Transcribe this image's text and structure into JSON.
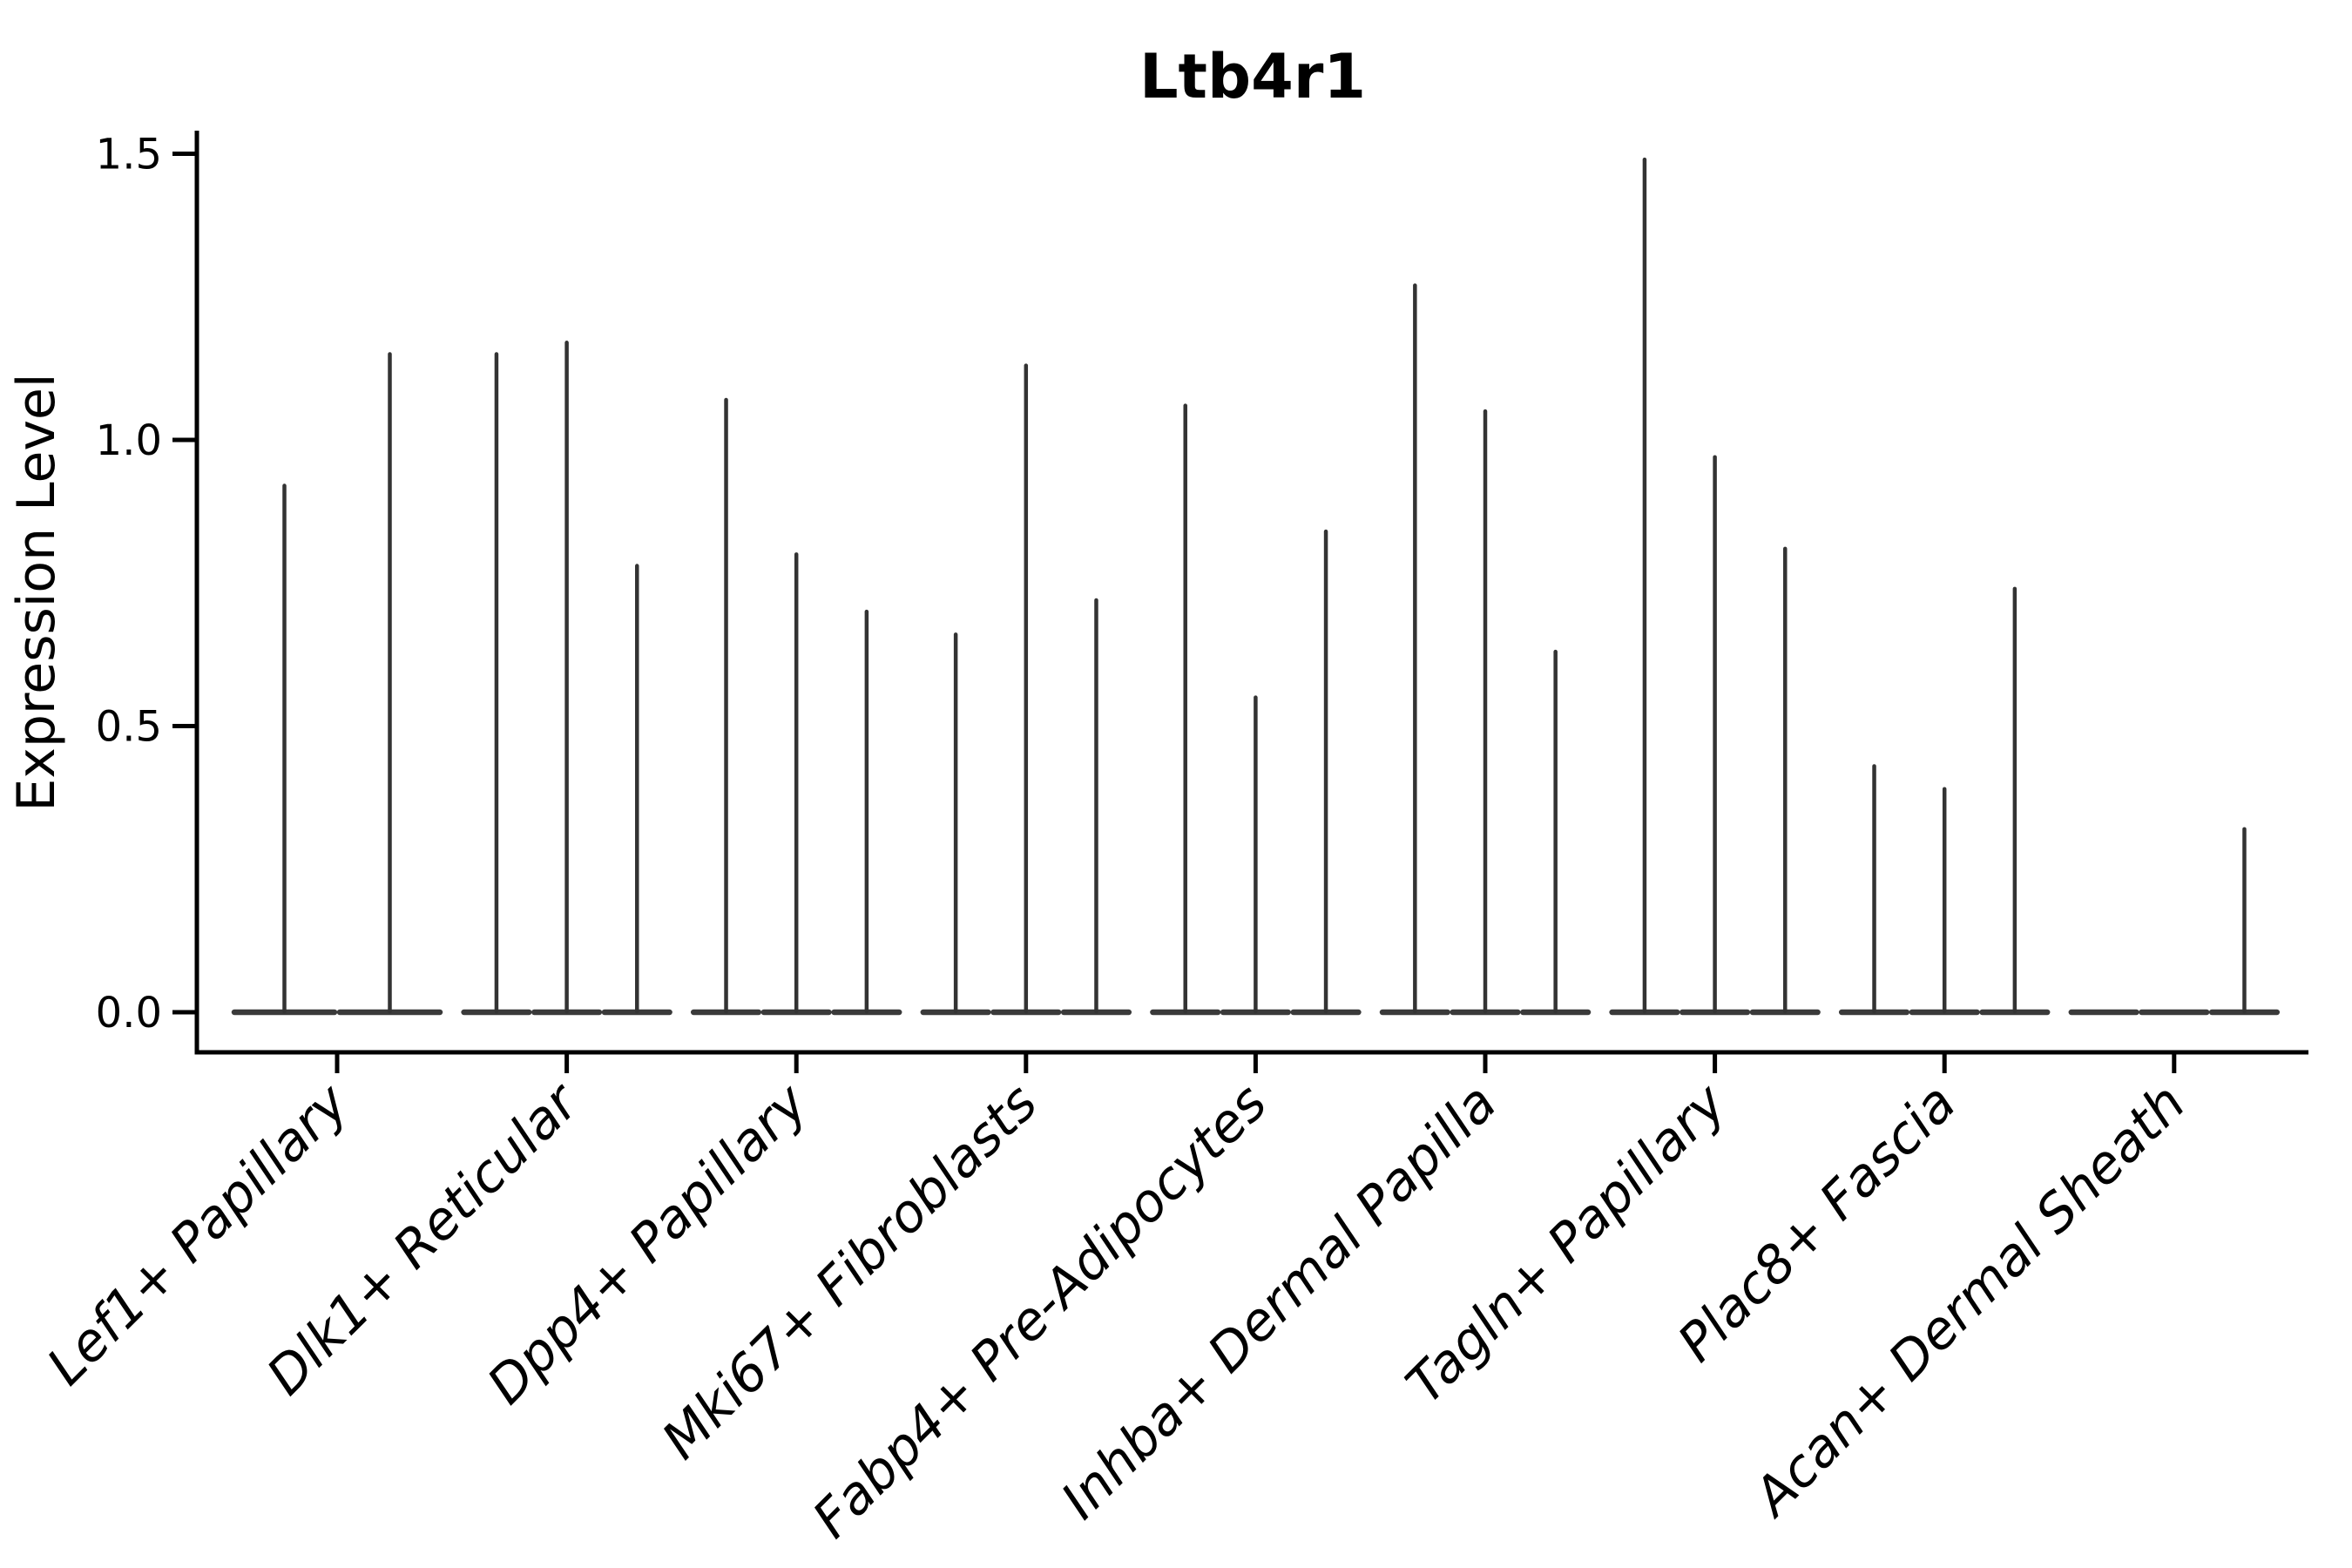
{
  "figure": {
    "title": "Ltb4r1",
    "ylabel": "Expression Level"
  },
  "chart_data": {
    "type": "violin",
    "title": "Ltb4r1",
    "xlabel": "",
    "ylabel": "Expression Level",
    "ylim": [
      -0.07,
      1.54
    ],
    "yticks": [
      0.0,
      0.5,
      1.0,
      1.5
    ],
    "ytick_labels": [
      "0.0",
      "0.5",
      "1.0",
      "1.5"
    ],
    "grid": false,
    "legend": "none",
    "violin_style": "zero-inflated needle violins: flat dense body at 0 with a thin spike rising to the maximum expression value",
    "categories": [
      "Lef1+ Papillary",
      "Dlk1+ Reticular",
      "Dpp4+ Papillary",
      "Mki67+ Fibroblasts",
      "Fabp4+ Pre-Adipocytes",
      "Inhba+ Dermal Papilla",
      "Tagln+ Papillary",
      "Plac8+ Fascia",
      "Acan+ Dermal Sheath"
    ],
    "groups": [
      {
        "label": "Lef1+ Papillary",
        "violin_max": [
          0.92,
          1.15
        ]
      },
      {
        "label": "Dlk1+ Reticular",
        "violin_max": [
          1.15,
          1.17,
          0.78
        ]
      },
      {
        "label": "Dpp4+ Papillary",
        "violin_max": [
          1.07,
          0.8,
          0.7
        ]
      },
      {
        "label": "Mki67+ Fibroblasts",
        "violin_max": [
          0.66,
          1.13,
          0.72
        ]
      },
      {
        "label": "Fabp4+ Pre-Adipocytes",
        "violin_max": [
          1.06,
          0.55,
          0.84
        ]
      },
      {
        "label": "Inhba+ Dermal Papilla",
        "violin_max": [
          1.27,
          1.05,
          0.63
        ]
      },
      {
        "label": "Tagln+ Papillary",
        "violin_max": [
          1.49,
          0.97,
          0.81
        ]
      },
      {
        "label": "Plac8+ Fascia",
        "violin_max": [
          0.43,
          0.39,
          0.74
        ]
      },
      {
        "label": "Acan+ Dermal Sheath",
        "violin_max": [
          0.0,
          0.0,
          0.32
        ]
      }
    ],
    "colors": {
      "violin_spike": "#333333",
      "violin_body": "#3a3a3a",
      "axis": "#000000",
      "background": "#ffffff"
    }
  }
}
